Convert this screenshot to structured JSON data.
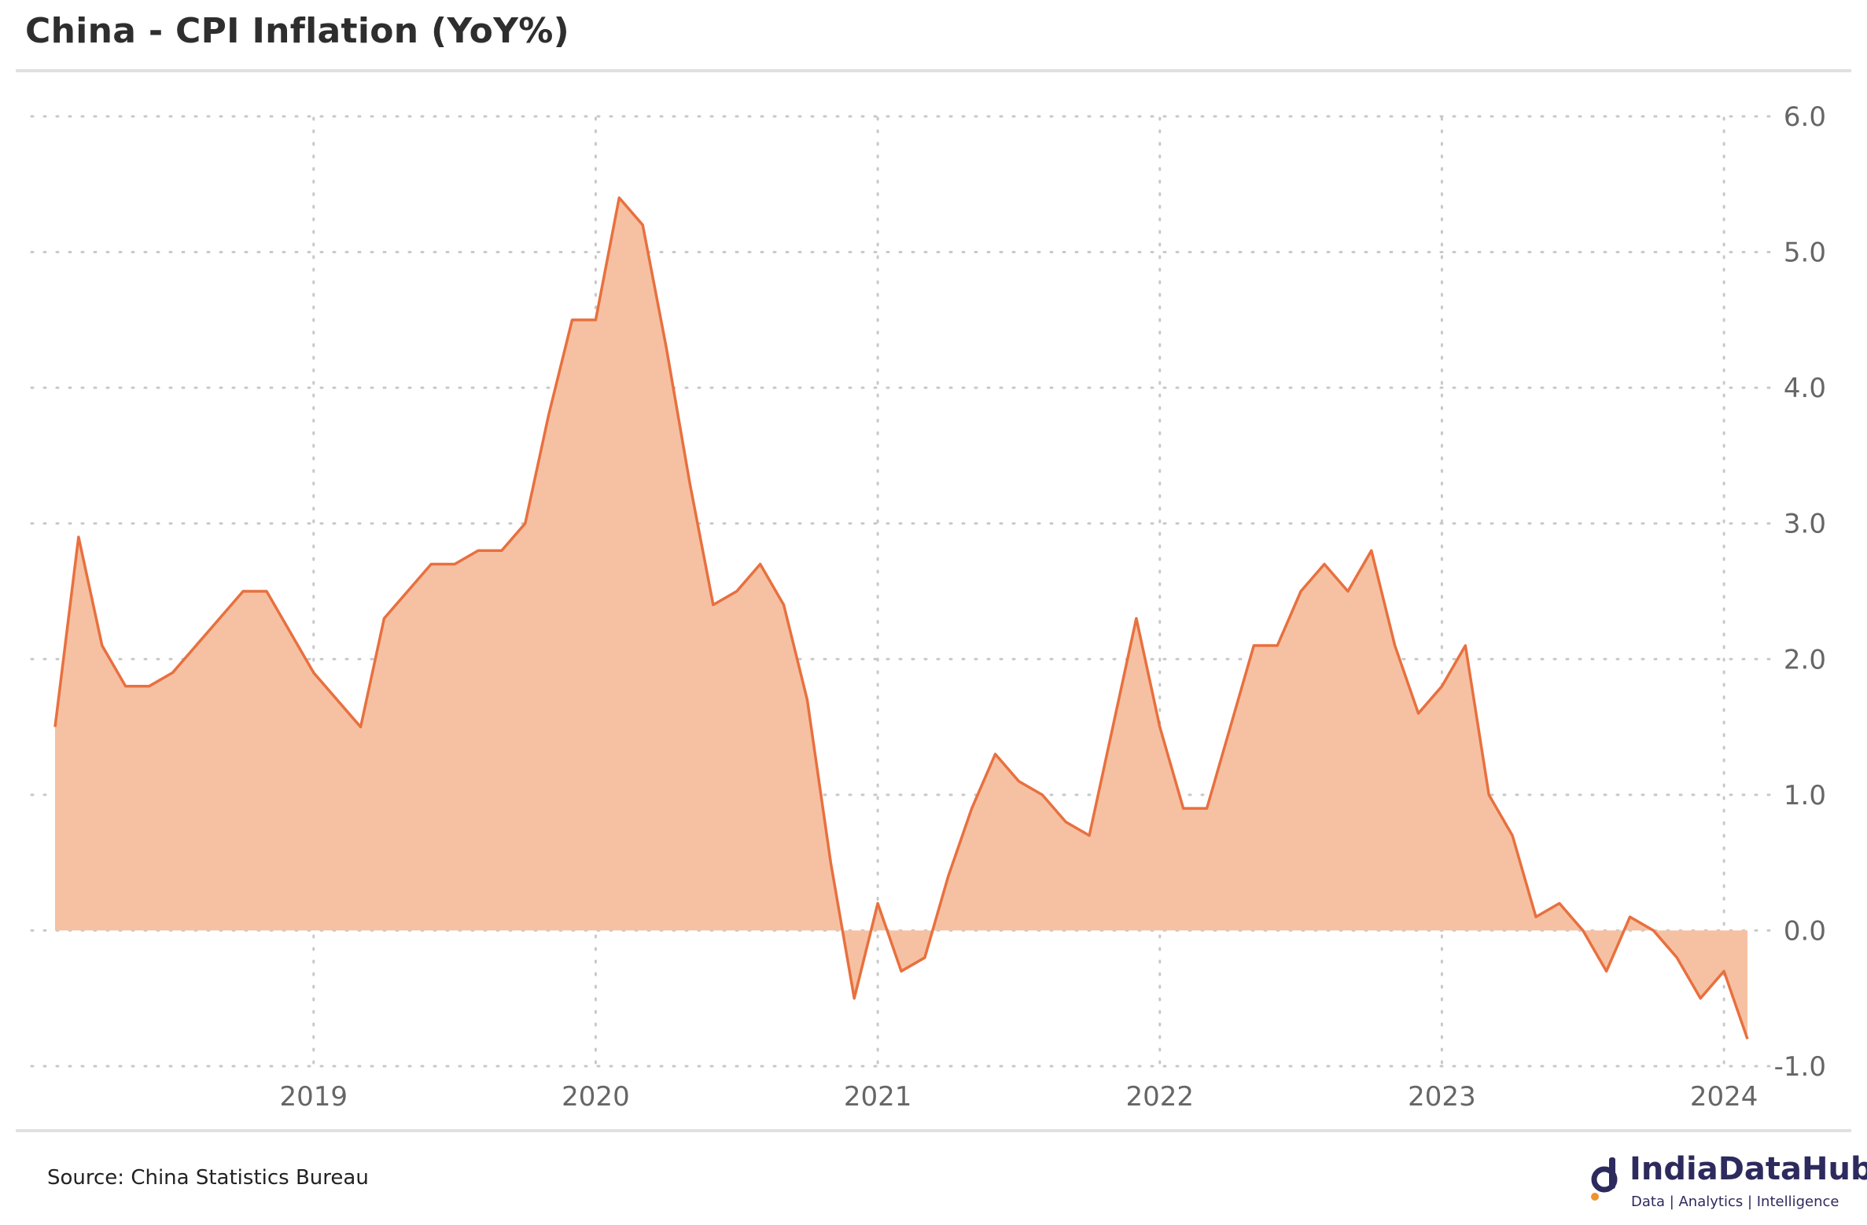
{
  "header": {
    "title": "China - CPI Inflation (YoY%)"
  },
  "footer": {
    "source": "Source: China Statistics Bureau",
    "logo_name": "IndiaDataHub",
    "logo_tagline": "Data | Analytics | Intelligence"
  },
  "colors": {
    "line": "#E8703F",
    "area": "#F6C1A2",
    "grid": "#c8c8c8",
    "tick_text": "#666666",
    "brand": "#2d2a5e"
  },
  "chart_data": {
    "type": "area",
    "title": "China - CPI Inflation (YoY%)",
    "xlabel": "",
    "ylabel": "",
    "x_start": "2018-02",
    "x_end": "2024-02",
    "frequency": "monthly",
    "ylim": [
      -1.0,
      6.0
    ],
    "y_ticks": [
      "6.0",
      "5.0",
      "4.0",
      "3.0",
      "2.0",
      "1.0",
      "0.0",
      "-1.0"
    ],
    "x_ticks": [
      "2019",
      "2020",
      "2021",
      "2022",
      "2023",
      "2024"
    ],
    "grid": true,
    "y_axis_side": "right",
    "series": [
      {
        "values": [
          1.5,
          2.9,
          2.1,
          1.8,
          1.8,
          1.9,
          2.1,
          2.3,
          2.5,
          2.5,
          2.2,
          1.9,
          1.7,
          1.5,
          2.3,
          2.5,
          2.7,
          2.7,
          2.8,
          2.8,
          3.0,
          3.8,
          4.5,
          4.5,
          5.4,
          5.2,
          4.3,
          3.3,
          2.4,
          2.5,
          2.7,
          2.4,
          1.7,
          0.5,
          -0.5,
          0.2,
          -0.3,
          -0.2,
          0.4,
          0.9,
          1.3,
          1.1,
          1.0,
          0.8,
          0.7,
          1.5,
          2.3,
          1.5,
          0.9,
          0.9,
          1.5,
          2.1,
          2.1,
          2.5,
          2.7,
          2.5,
          2.8,
          2.1,
          1.6,
          1.8,
          2.1,
          1.0,
          0.7,
          0.1,
          0.2,
          0.0,
          -0.3,
          0.1,
          0.0,
          -0.2,
          -0.5,
          -0.3,
          -0.8
        ]
      }
    ]
  }
}
